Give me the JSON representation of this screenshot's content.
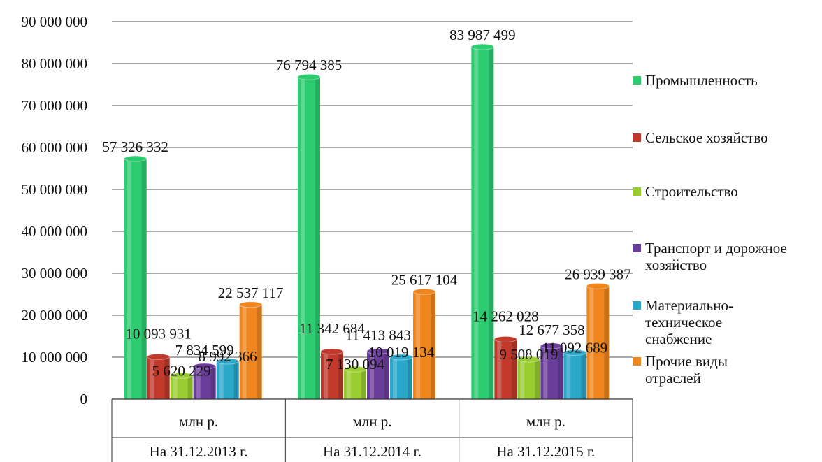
{
  "chart_data": {
    "type": "bar",
    "title": "",
    "xlabel": "",
    "ylabel": "",
    "ylim": [
      0,
      90000000
    ],
    "yticks": [
      "0",
      "10 000 000",
      "20 000 000",
      "30 000 000",
      "40 000 000",
      "50 000 000",
      "60 000 000",
      "70 000 000",
      "80 000 000",
      "90 000 000"
    ],
    "grid": true,
    "legend_position": "right",
    "categories": [
      {
        "unit": "млн р.",
        "date": "На 31.12.2013 г."
      },
      {
        "unit": "млн р.",
        "date": "На 31.12.2014 г."
      },
      {
        "unit": "млн р.",
        "date": "На 31.12.2015 г."
      }
    ],
    "series": [
      {
        "name": "Промышленность",
        "color": "#2ecc71",
        "values": [
          57326332,
          76794385,
          83987499
        ],
        "labels": [
          "57 326 332",
          "76 794 385",
          "83 987 499"
        ]
      },
      {
        "name": "Сельское хозяйство",
        "color": "#c0392b",
        "values": [
          10093931,
          11342684,
          14262028
        ],
        "labels": [
          "10 093 931",
          "11 342 684",
          "14 262 028"
        ]
      },
      {
        "name": "Строительство",
        "color": "#9acd32",
        "values": [
          5620229,
          7130094,
          9508019
        ],
        "labels": [
          "5 620 229",
          "7 130 094",
          "9 508 019"
        ]
      },
      {
        "name": "Транспорт и дорожное хозяйство",
        "color": "#6a3d9a",
        "values": [
          7834599,
          11413843,
          12677358
        ],
        "labels": [
          "7 834 599",
          "11 413 843",
          "12 677 358"
        ]
      },
      {
        "name": "Материально-техническое снабжение",
        "color": "#2aa7c9",
        "values": [
          8992366,
          10019134,
          11092689
        ],
        "labels": [
          "8 992 366",
          "10 019 134",
          "11 092 689"
        ]
      },
      {
        "name": "Прочие виды отраслей",
        "color": "#f0861e",
        "values": [
          22537117,
          25617104,
          26939387
        ],
        "labels": [
          "22 537 117",
          "25 617 104",
          "26 939 387"
        ]
      }
    ]
  }
}
